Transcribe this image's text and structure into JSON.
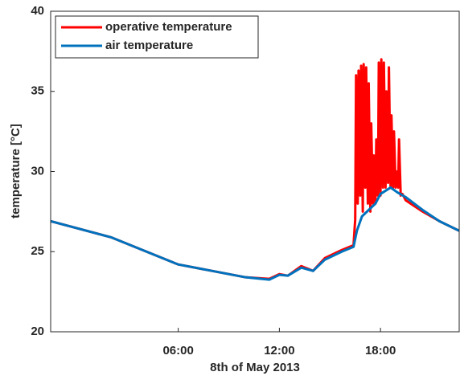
{
  "chart_data": {
    "type": "line",
    "xlabel": "8th of May 2013",
    "ylabel": "temperature [°C]",
    "xlim": [
      -1.57,
      22.67
    ],
    "xticks": [
      {
        "value": 6,
        "label": "06:00"
      },
      {
        "value": 12,
        "label": "12:00"
      },
      {
        "value": 18,
        "label": "18:00"
      }
    ],
    "ylim": [
      20,
      40
    ],
    "yticks": [
      20,
      25,
      30,
      35,
      40
    ],
    "grid": false,
    "legend": "upper left",
    "series": [
      {
        "name": "operative temperature",
        "color": "#ff0000",
        "x": [
          -1.57,
          2,
          6,
          8,
          10,
          11.4,
          12,
          12.5,
          13.3,
          14,
          14.7,
          15.7,
          16.4,
          16.5,
          16.55,
          16.65,
          16.7,
          16.8,
          16.85,
          16.95,
          17.0,
          17.1,
          17.15,
          17.25,
          17.3,
          17.4,
          17.45,
          17.55,
          17.6,
          17.7,
          17.75,
          17.85,
          17.9,
          18.0,
          18.05,
          18.15,
          18.2,
          18.3,
          18.35,
          18.45,
          18.5,
          18.6,
          18.65,
          18.75,
          18.8,
          18.9,
          18.95,
          19.05,
          19.1,
          19.2,
          19.3,
          19.5,
          20.5,
          21.5,
          22.67
        ],
        "values": [
          26.9,
          25.9,
          24.2,
          23.8,
          23.4,
          23.3,
          23.6,
          23.5,
          24.1,
          23.8,
          24.6,
          25.1,
          25.4,
          27,
          36,
          28,
          36.3,
          28.5,
          36.6,
          27.5,
          36.7,
          29,
          36.5,
          28,
          35.5,
          27.5,
          33,
          28,
          31,
          28,
          32,
          28.5,
          36.8,
          28.5,
          37,
          29,
          36.8,
          29,
          35,
          29.3,
          36.5,
          29,
          33.5,
          29,
          32.5,
          29,
          30,
          29,
          32,
          28.5,
          28.6,
          28.2,
          27.5,
          26.9,
          26.3
        ]
      },
      {
        "name": "air temperature",
        "color": "#0072bd",
        "x": [
          -1.57,
          2,
          6,
          8,
          10,
          11.4,
          12,
          12.5,
          13.3,
          14,
          14.7,
          15.7,
          16.4,
          16.6,
          16.9,
          17.3,
          17.7,
          18.0,
          18.3,
          18.6,
          19.0,
          19.5,
          20.5,
          21.5,
          22.67
        ],
        "values": [
          26.9,
          25.9,
          24.2,
          23.8,
          23.4,
          23.25,
          23.55,
          23.5,
          24.0,
          23.8,
          24.5,
          25.0,
          25.3,
          26.3,
          27.2,
          27.6,
          28.0,
          28.6,
          28.8,
          29.0,
          28.7,
          28.4,
          27.6,
          26.9,
          26.3
        ]
      }
    ]
  }
}
